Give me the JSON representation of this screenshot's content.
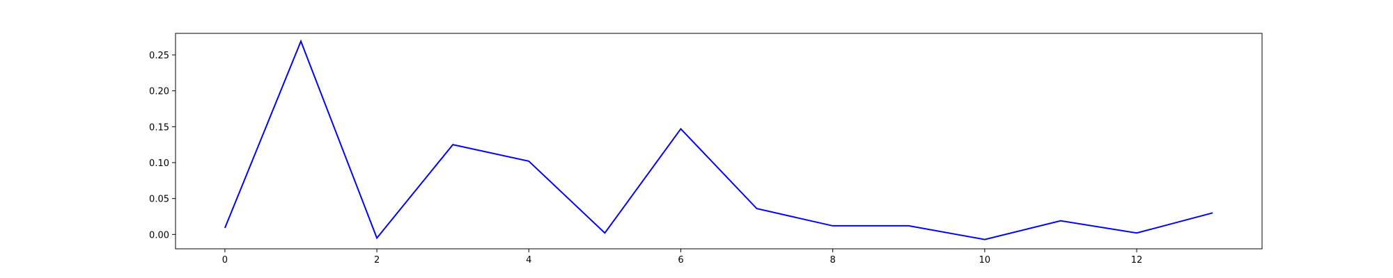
{
  "chart_data": {
    "type": "line",
    "title": "",
    "xlabel": "",
    "ylabel": "",
    "xlim": [
      -0.65,
      13.65
    ],
    "ylim": [
      -0.02,
      0.28
    ],
    "xticks": [
      0,
      2,
      4,
      6,
      8,
      10,
      12
    ],
    "xtick_labels": [
      "0",
      "2",
      "4",
      "6",
      "8",
      "10",
      "12"
    ],
    "yticks": [
      0.0,
      0.05,
      0.1,
      0.15,
      0.2,
      0.25
    ],
    "ytick_labels": [
      "0.00",
      "0.05",
      "0.10",
      "0.15",
      "0.20",
      "0.25"
    ],
    "grid": false,
    "legend": "none",
    "series": [
      {
        "color": "#0000ff",
        "x": [
          0,
          1,
          2,
          3,
          4,
          5,
          6,
          7,
          8,
          9,
          10,
          11,
          12,
          13
        ],
        "y": [
          0.009,
          0.269,
          -0.005,
          0.125,
          0.102,
          0.002,
          0.147,
          0.036,
          0.012,
          0.012,
          -0.007,
          0.019,
          0.002,
          0.03
        ]
      }
    ]
  }
}
